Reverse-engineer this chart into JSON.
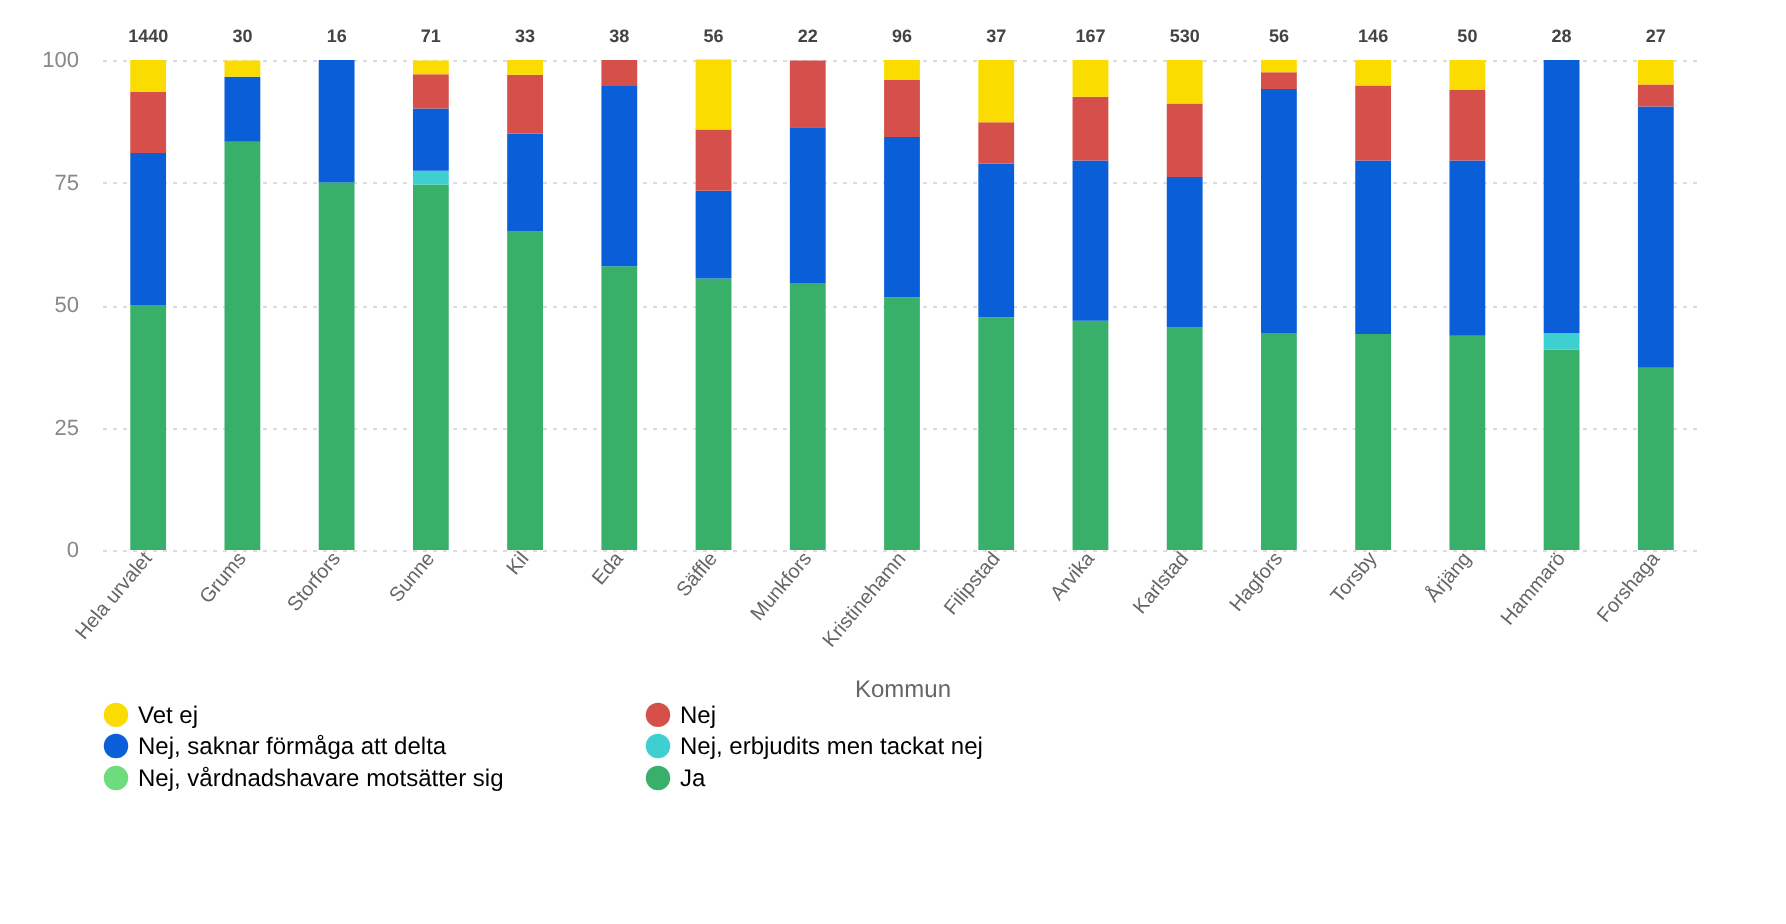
{
  "chart_data": {
    "type": "bar",
    "stacked": true,
    "xlabel": "Kommun",
    "categories": [
      "Hela urvalet",
      "Grums",
      "Storfors",
      "Sunne",
      "Kil",
      "Eda",
      "Säffle",
      "Munkfors",
      "Kristinehamn",
      "Filipstad",
      "Arvika",
      "Karlstad",
      "Hagfors",
      "Torsby",
      "Årjäng",
      "Hammarö",
      "Forshaga"
    ],
    "series": [
      {
        "name": "Ja",
        "color": "#38b06a",
        "values": [
          50,
          83.3,
          75,
          74.6,
          65,
          57.9,
          55.4,
          54.5,
          51.6,
          47.5,
          46.8,
          45.4,
          44.3,
          44.1,
          43.7,
          40.9,
          37.2
        ]
      },
      {
        "name": "Nej, vårdnadshavare motsätter sig",
        "color": "#6ddc7e",
        "values": [
          0,
          0,
          0,
          0,
          0,
          0,
          0,
          0,
          0,
          0,
          0,
          0,
          0,
          0,
          0,
          0,
          0
        ]
      },
      {
        "name": "Nej, erbjudits men tackat nej",
        "color": "#3ecfd0",
        "values": [
          0,
          0,
          0,
          2.8,
          0,
          0,
          0,
          0,
          0,
          0,
          0,
          0,
          0,
          0,
          0,
          3.4,
          0
        ]
      },
      {
        "name": "Nej, saknar förmåga att delta",
        "color": "#0a5fd8",
        "values": [
          31,
          13.3,
          25,
          12.7,
          20,
          36.8,
          17.9,
          31.8,
          32.7,
          31.4,
          32.7,
          30.7,
          49.8,
          35.4,
          35.8,
          55.7,
          53.3
        ]
      },
      {
        "name": "Nej",
        "color": "#d5504a",
        "values": [
          12.5,
          0,
          0,
          7.0,
          12,
          5.3,
          12.5,
          13.6,
          11.6,
          8.4,
          13.0,
          15.0,
          3.4,
          15.3,
          14.4,
          0,
          4.5
        ]
      },
      {
        "name": "Vet ej",
        "color": "#fadc00",
        "values": [
          6.5,
          3.3,
          0,
          2.8,
          3,
          0,
          14.3,
          0,
          4.1,
          12.7,
          7.5,
          8.9,
          2.5,
          5.2,
          6.1,
          0,
          5
        ]
      }
    ],
    "annotations": [
      {
        "text": "1440",
        "x": "Hela urvalet",
        "y": 100
      },
      {
        "text": "30",
        "x": "Grums",
        "y": 100
      },
      {
        "text": "16",
        "x": "Storfors",
        "y": 100
      },
      {
        "text": "71",
        "x": "Sunne",
        "y": 100
      },
      {
        "text": "33",
        "x": "Kil",
        "y": 100
      },
      {
        "text": "38",
        "x": "Eda",
        "y": 100
      },
      {
        "text": "56",
        "x": "Säffle",
        "y": 100
      },
      {
        "text": "22",
        "x": "Munkfors",
        "y": 100
      },
      {
        "text": "96",
        "x": "Kristinehamn",
        "y": 100
      },
      {
        "text": "37",
        "x": "Filipstad",
        "y": 100
      },
      {
        "text": "167",
        "x": "Arvika",
        "y": 100
      },
      {
        "text": "530",
        "x": "Karlstad",
        "y": 100
      },
      {
        "text": "56",
        "x": "Hagfors",
        "y": 100
      },
      {
        "text": "146",
        "x": "Torsby",
        "y": 100
      },
      {
        "text": "50",
        "x": "Årjäng",
        "y": 100
      },
      {
        "text": "28",
        "x": "Hammarö",
        "y": 100
      },
      {
        "text": "27",
        "x": "Forshaga",
        "y": 100
      }
    ],
    "ylim": [
      0,
      100
    ],
    "yticks": [
      0,
      25,
      50,
      75,
      100
    ],
    "grid": "y",
    "legend": "bottom"
  }
}
